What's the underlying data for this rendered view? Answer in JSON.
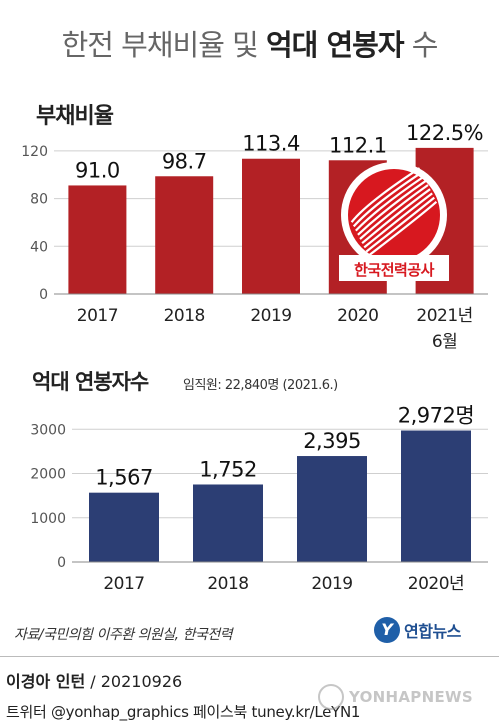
{
  "header": {
    "title_light": "한전 부채비율 및 ",
    "title_bold": "억대 연봉자",
    "title_end": " 수"
  },
  "logo": {
    "name_text": "한국전력공사",
    "colors": {
      "red": "#d7181f",
      "white": "#ffffff"
    }
  },
  "chart_data": [
    {
      "type": "bar",
      "title": "부채비율",
      "categories": [
        "2017",
        "2018",
        "2019",
        "2020",
        "2021년 6월"
      ],
      "category_lines": [
        [
          "2017"
        ],
        [
          "2018"
        ],
        [
          "2019"
        ],
        [
          "2020"
        ],
        [
          "2021년",
          "6월"
        ]
      ],
      "values": [
        91.0,
        98.7,
        113.4,
        112.1,
        122.5
      ],
      "value_labels": [
        "91.0",
        "98.7",
        "113.4",
        "112.1",
        "122.5%"
      ],
      "yticks": [
        0,
        40,
        80,
        120
      ],
      "ylim": [
        0,
        140
      ],
      "grid": true,
      "colors": {
        "bar": "#b32125",
        "title": "#b32125"
      }
    },
    {
      "type": "bar",
      "title": "억대 연봉자수",
      "note": "임직원: 22,840명 (2021.6.)",
      "categories": [
        "2017",
        "2018",
        "2019",
        "2020년"
      ],
      "category_lines": [
        [
          "2017"
        ],
        [
          "2018"
        ],
        [
          "2019"
        ],
        [
          "2020년"
        ]
      ],
      "values": [
        1567,
        1752,
        2395,
        2972
      ],
      "value_labels": [
        "1,567",
        "1,752",
        "2,395",
        "2,972명"
      ],
      "yticks": [
        0,
        1000,
        2000,
        3000
      ],
      "ylim": [
        0,
        3300
      ],
      "grid": true,
      "colors": {
        "bar": "#2c3e74",
        "title": "#2c3e74"
      }
    }
  ],
  "footer": {
    "source": "자료/국민의힘 이주환 의원실, 한국전력",
    "agency_logo_mark": "Y",
    "agency_logo_text": "연합뉴스",
    "author": "이경아 인턴",
    "date": " / 20210926",
    "social": "트위터 @yonhap_graphics  페이스북 tuney.kr/LeYN1",
    "watermark": "YONHAPNEWS"
  }
}
